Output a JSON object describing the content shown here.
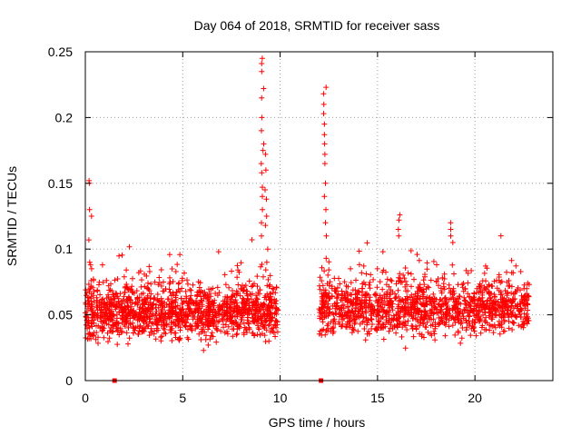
{
  "chart_data": {
    "type": "scatter",
    "title": "Day 064 of 2018, SRMTID for receiver sass",
    "xlabel": "GPS time / hours",
    "ylabel": "SRMTID / TECUs",
    "xlim": [
      0,
      24
    ],
    "ylim": [
      0,
      0.25
    ],
    "x_ticks": [
      0,
      5,
      10,
      15,
      20
    ],
    "x_tick_labels": [
      "0",
      "5",
      "10",
      "15",
      "20"
    ],
    "y_ticks": [
      0,
      0.05,
      0.1,
      0.15,
      0.2,
      0.25
    ],
    "y_tick_labels": [
      "0",
      "0.05",
      "0.1",
      "0.15",
      "0.2",
      "0.25"
    ],
    "grid": true,
    "legend": "none",
    "marker": "plus",
    "color": "#ff0000",
    "series": [
      {
        "name": "SRMTID",
        "generated": true,
        "description": "~2500 points; values mostly 0.02–0.09 TECU, with peaks near 9.2 h (≈0.245) and 12.3 h (≈0.22) and a data gap between 10 h and 12 h",
        "segments": [
          {
            "x_start": 0.0,
            "x_end": 9.9,
            "count": 1400,
            "center": 0.052,
            "spread": 0.03
          },
          {
            "x_start": 12.0,
            "x_end": 22.8,
            "count": 1300,
            "center": 0.055,
            "spread": 0.03
          }
        ],
        "spikes": [
          {
            "x": 0.25,
            "values": [
              0.152,
              0.15,
              0.13,
              0.125,
              0.107,
              0.09,
              0.088,
              0.085
            ]
          },
          {
            "x": 9.1,
            "values": [
              0.245,
              0.241,
              0.235,
              0.222,
              0.215,
              0.2,
              0.19,
              0.18,
              0.175,
              0.165,
              0.158,
              0.147,
              0.14,
              0.13,
              0.12,
              0.11
            ]
          },
          {
            "x": 9.3,
            "values": [
              0.172,
              0.16,
              0.145,
              0.138,
              0.125,
              0.118,
              0.1,
              0.09
            ]
          },
          {
            "x": 12.3,
            "values": [
              0.223,
              0.218,
              0.21,
              0.203,
              0.195,
              0.187,
              0.18,
              0.172,
              0.165,
              0.15,
              0.14,
              0.13,
              0.12,
              0.11
            ]
          },
          {
            "x": 16.1,
            "values": [
              0.126,
              0.122,
              0.115,
              0.11
            ]
          },
          {
            "x": 18.8,
            "values": [
              0.12,
              0.115,
              0.11,
              0.105
            ]
          }
        ],
        "zero_markers": [
          1.5,
          12.1
        ]
      }
    ]
  }
}
